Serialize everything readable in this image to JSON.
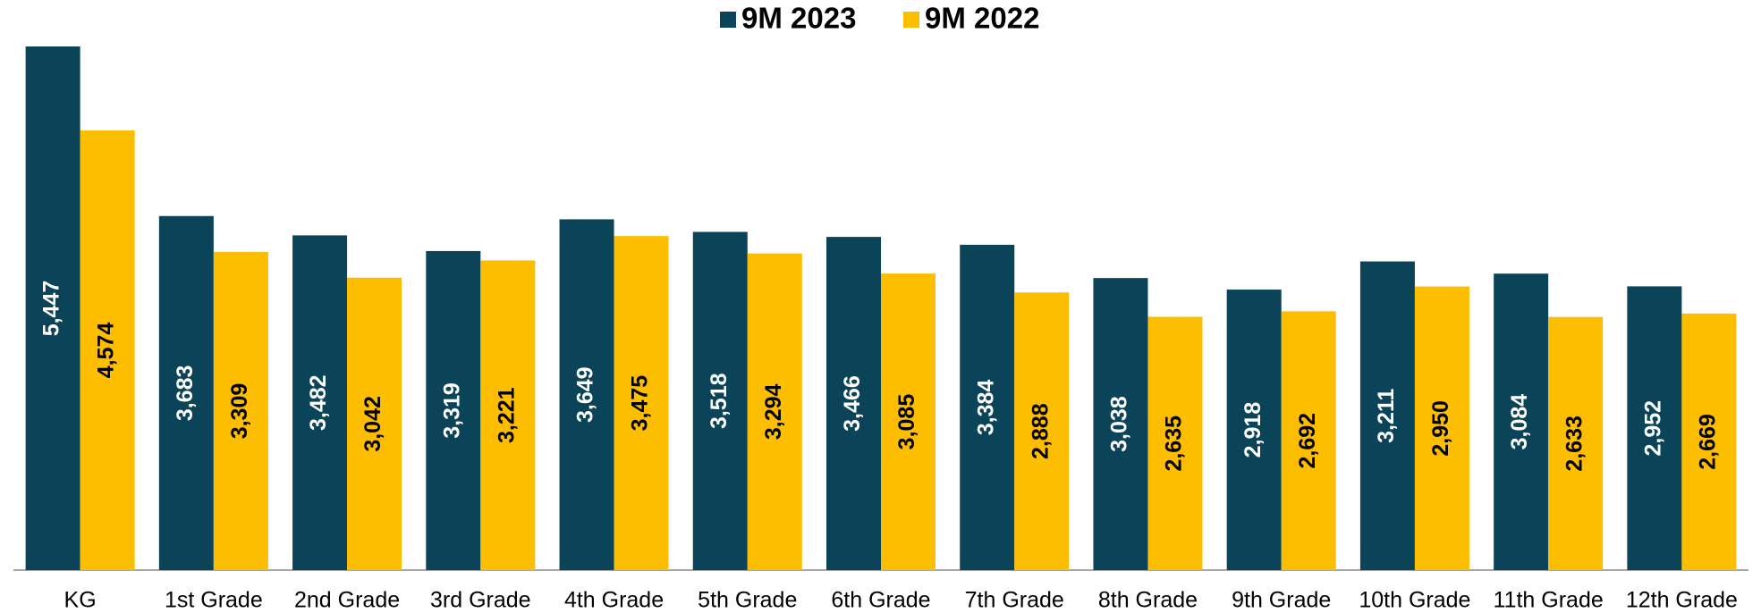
{
  "chart_data": {
    "type": "bar",
    "categories": [
      "KG",
      "1st Grade",
      "2nd Grade",
      "3rd Grade",
      "4th Grade",
      "5th Grade",
      "6th Grade",
      "7th Grade",
      "8th Grade",
      "9th Grade",
      "10th Grade",
      "11th Grade",
      "12th Grade"
    ],
    "series": [
      {
        "name": "9M 2023",
        "color": "#0b4359",
        "label_color": "#ffffff",
        "values": [
          5447,
          3683,
          3482,
          3319,
          3649,
          3518,
          3466,
          3384,
          3038,
          2918,
          3211,
          3084,
          2952
        ],
        "value_labels": [
          "5,447",
          "3,683",
          "3,482",
          "3,319",
          "3,649",
          "3,518",
          "3,466",
          "3,384",
          "3,038",
          "2,918",
          "3,211",
          "3,084",
          "2,952"
        ]
      },
      {
        "name": "9M 2022",
        "color": "#fdbd00",
        "label_color": "#000000",
        "values": [
          4574,
          3309,
          3042,
          3221,
          3475,
          3294,
          3085,
          2888,
          2635,
          2692,
          2950,
          2633,
          2669
        ],
        "value_labels": [
          "4,574",
          "3,309",
          "3,042",
          "3,221",
          "3,475",
          "3,294",
          "3,085",
          "2,888",
          "2,635",
          "2,692",
          "2,950",
          "2,633",
          "2,669"
        ]
      }
    ],
    "legend": "top"
  }
}
